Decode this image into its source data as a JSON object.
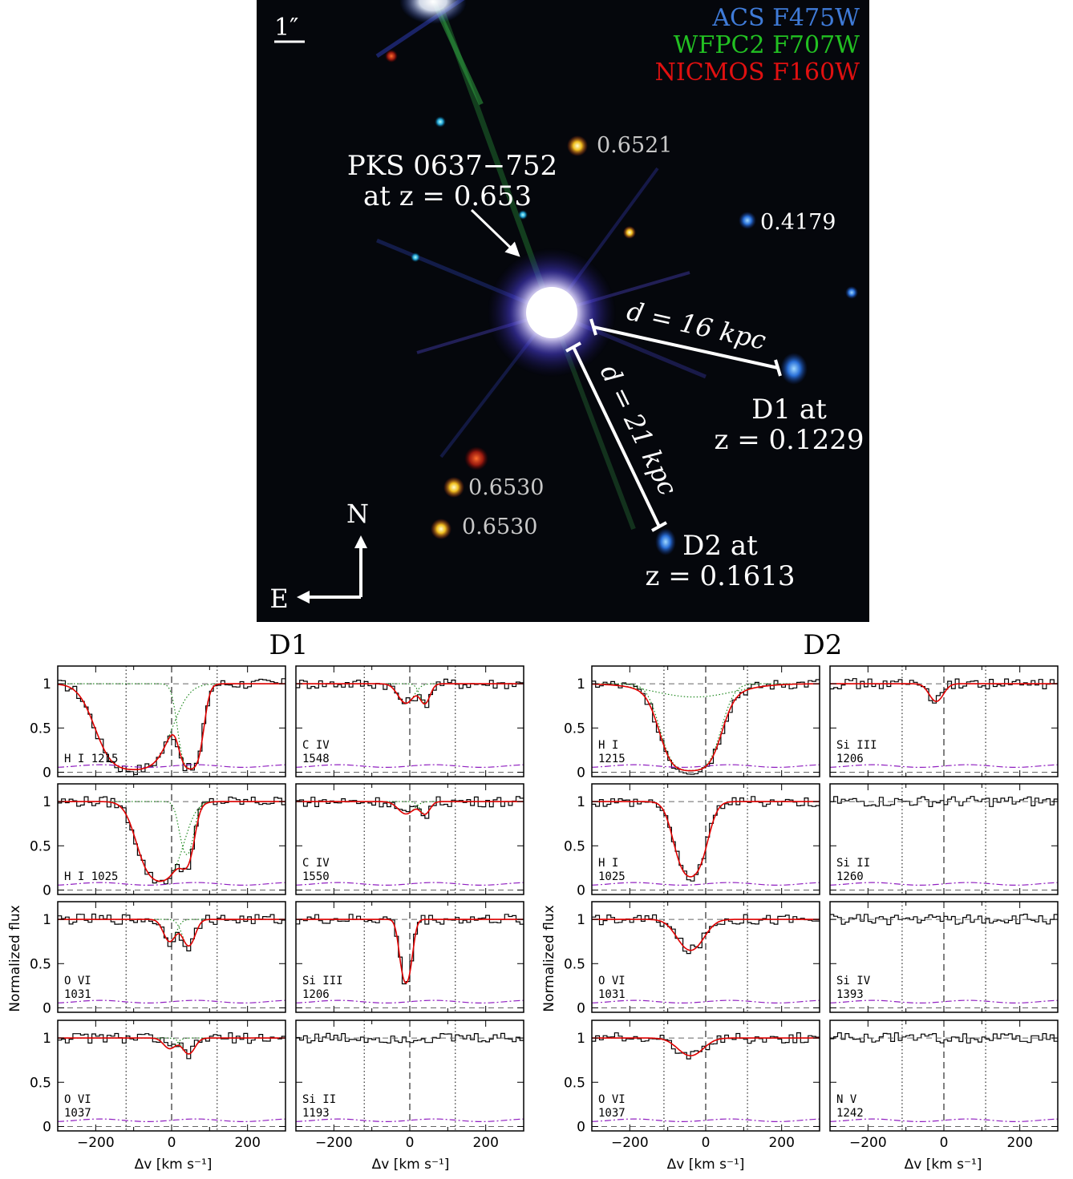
{
  "image_panel": {
    "scale_label": "1″",
    "filters": [
      {
        "label": "ACS F475W",
        "color": "#3f7bd8"
      },
      {
        "label": "WFPC2 F707W",
        "color": "#22c022"
      },
      {
        "label": "NICMOS F160W",
        "color": "#e01010"
      }
    ],
    "quasar_name": "PKS 0637−752",
    "quasar_z": "at z = 0.653",
    "galaxy_labels": [
      "0.6521",
      "0.4179",
      "0.6530",
      "0.6530"
    ],
    "d1_distance": "d = 16 kpc",
    "d2_distance": "d = 21 kpc",
    "d1_name": "D1 at",
    "d1_z": "z = 0.1229",
    "d2_name": "D2 at",
    "d2_z": "z = 0.1613",
    "compass_n": "N",
    "compass_e": "E"
  },
  "spectra": {
    "group_titles": [
      "D1",
      "D2"
    ],
    "ylabel": "Normalized flux",
    "xlabel": "Δv  [km s⁻¹]",
    "xticks": [
      "−200",
      "0",
      "200"
    ],
    "yticks": [
      "0",
      "0.5",
      "1"
    ],
    "xrange": [
      -300,
      300
    ],
    "yrange": [
      -0.05,
      1.2
    ],
    "colors": {
      "data": "#000000",
      "model": "#e00000",
      "component": "#108010",
      "error": "#9020c0"
    },
    "panels": [
      {
        "ion": "H I 1215",
        "group": 0,
        "col": 0,
        "row": 0,
        "vlines": [
          -120,
          120
        ],
        "components": [
          {
            "v": -100,
            "depth": 0.97,
            "width": 80
          },
          {
            "v": 50,
            "depth": 0.96,
            "width": 28
          }
        ]
      },
      {
        "ion": "C IV\n1548",
        "group": 0,
        "col": 1,
        "row": 0,
        "vlines": [
          -120,
          120
        ],
        "components": [
          {
            "v": -10,
            "depth": 0.22,
            "width": 28
          },
          {
            "v": 40,
            "depth": 0.22,
            "width": 18
          }
        ]
      },
      {
        "ion": "H I 1025",
        "group": 0,
        "col": 0,
        "row": 1,
        "vlines": [
          -120,
          120
        ],
        "components": [
          {
            "v": -30,
            "depth": 0.9,
            "width": 55
          },
          {
            "v": 40,
            "depth": 0.6,
            "width": 22
          }
        ]
      },
      {
        "ion": "C IV\n1550",
        "group": 0,
        "col": 1,
        "row": 1,
        "vlines": [
          -120,
          120
        ],
        "components": [
          {
            "v": -10,
            "depth": 0.14,
            "width": 28
          },
          {
            "v": 40,
            "depth": 0.14,
            "width": 18
          }
        ]
      },
      {
        "ion": "O VI\n1031",
        "group": 0,
        "col": 0,
        "row": 2,
        "vlines": [
          -120,
          120
        ],
        "components": [
          {
            "v": -5,
            "depth": 0.25,
            "width": 22
          },
          {
            "v": 45,
            "depth": 0.3,
            "width": 22
          }
        ]
      },
      {
        "ion": "Si III\n1206",
        "group": 0,
        "col": 1,
        "row": 2,
        "vlines": [
          -120,
          120
        ],
        "components": [
          {
            "v": -10,
            "depth": 0.72,
            "width": 18
          }
        ]
      },
      {
        "ion": "O VI\n1037",
        "group": 0,
        "col": 0,
        "row": 3,
        "vlines": [
          -120,
          120
        ],
        "components": [
          {
            "v": -5,
            "depth": 0.12,
            "width": 22
          },
          {
            "v": 45,
            "depth": 0.18,
            "width": 22
          }
        ]
      },
      {
        "ion": "Si II\n1193",
        "group": 0,
        "col": 1,
        "row": 3,
        "vlines": [
          -120,
          120
        ],
        "components": []
      },
      {
        "ion": "H I\n1215",
        "group": 1,
        "col": 0,
        "row": 0,
        "vlines": [
          -110,
          110
        ],
        "components": [
          {
            "v": -40,
            "depth": 0.98,
            "width": 62
          },
          {
            "v": -30,
            "depth": 0.15,
            "width": 140
          }
        ]
      },
      {
        "ion": "Si III\n1206",
        "group": 1,
        "col": 1,
        "row": 0,
        "vlines": [
          -110,
          110
        ],
        "components": [
          {
            "v": -20,
            "depth": 0.2,
            "width": 25
          }
        ]
      },
      {
        "ion": "H I\n1025",
        "group": 1,
        "col": 0,
        "row": 1,
        "vlines": [
          -110,
          110
        ],
        "components": [
          {
            "v": -40,
            "depth": 0.85,
            "width": 42
          }
        ]
      },
      {
        "ion": "Si II\n1260",
        "group": 1,
        "col": 1,
        "row": 1,
        "vlines": [
          -110,
          110
        ],
        "components": []
      },
      {
        "ion": "O VI\n1031",
        "group": 1,
        "col": 0,
        "row": 2,
        "vlines": [
          -110,
          110
        ],
        "components": [
          {
            "v": -40,
            "depth": 0.35,
            "width": 45
          }
        ]
      },
      {
        "ion": "Si IV\n1393",
        "group": 1,
        "col": 1,
        "row": 2,
        "vlines": [
          -110,
          110
        ],
        "components": []
      },
      {
        "ion": "O VI\n1037",
        "group": 1,
        "col": 0,
        "row": 3,
        "vlines": [
          -110,
          110
        ],
        "components": [
          {
            "v": -40,
            "depth": 0.2,
            "width": 45
          }
        ]
      },
      {
        "ion": "N V\n1242",
        "group": 1,
        "col": 1,
        "row": 3,
        "vlines": [
          -110,
          110
        ],
        "components": []
      }
    ]
  }
}
